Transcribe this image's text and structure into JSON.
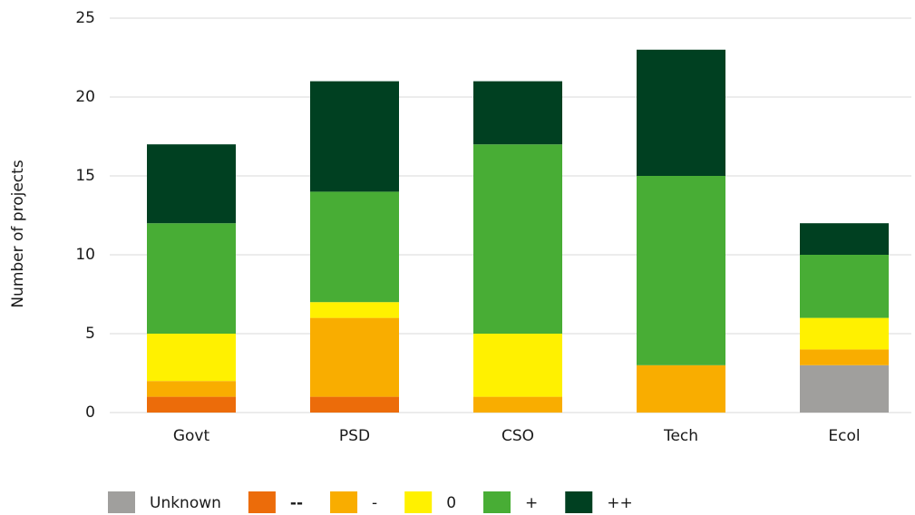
{
  "chart_data": {
    "type": "stacked_bar",
    "y_label": "Number of projects",
    "categories": [
      "Govt",
      "PSD",
      "CSO",
      "Tech",
      "Ecol"
    ],
    "series": [
      {
        "name": "Unknown",
        "color": "#a09f9d",
        "values": [
          0,
          0,
          0,
          0,
          3
        ]
      },
      {
        "name": "--",
        "color": "#ec6c0a",
        "values": [
          1,
          1,
          0,
          0,
          0
        ]
      },
      {
        "name": "-",
        "color": "#f9ad00",
        "values": [
          1,
          5,
          1,
          3,
          1
        ]
      },
      {
        "name": "0",
        "color": "#fff100",
        "values": [
          3,
          1,
          4,
          0,
          2
        ]
      },
      {
        "name": "+",
        "color": "#48ad35",
        "values": [
          7,
          7,
          12,
          12,
          4
        ]
      },
      {
        "name": "++",
        "color": "#004021",
        "values": [
          5,
          7,
          4,
          8,
          2
        ]
      }
    ],
    "ylim": [
      0,
      25
    ],
    "yticks": [
      0,
      5,
      10,
      15,
      20,
      25
    ],
    "grid": true,
    "legend": "bottom"
  }
}
